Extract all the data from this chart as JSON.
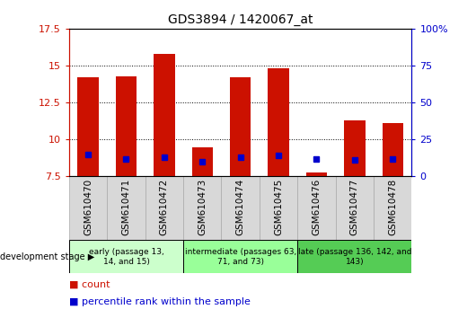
{
  "title": "GDS3894 / 1420067_at",
  "samples": [
    "GSM610470",
    "GSM610471",
    "GSM610472",
    "GSM610473",
    "GSM610474",
    "GSM610475",
    "GSM610476",
    "GSM610477",
    "GSM610478"
  ],
  "red_bar_values": [
    14.2,
    14.3,
    15.8,
    9.5,
    14.2,
    14.8,
    7.8,
    11.3,
    11.1
  ],
  "blue_dot_values": [
    9.0,
    8.7,
    8.8,
    8.5,
    8.8,
    8.9,
    8.7,
    8.6,
    8.7
  ],
  "ymin": 7.5,
  "ymax": 17.5,
  "y2min": 0,
  "y2max": 100,
  "yticks": [
    7.5,
    10.0,
    12.5,
    15.0,
    17.5
  ],
  "y2ticks": [
    0,
    25,
    50,
    75,
    100
  ],
  "groups": [
    {
      "label": "early (passage 13,\n14, and 15)",
      "start": 0,
      "end": 3,
      "color": "#ccffcc"
    },
    {
      "label": "intermediate (passages 63,\n71, and 73)",
      "start": 3,
      "end": 6,
      "color": "#99ff99"
    },
    {
      "label": "late (passage 136, 142, and\n143)",
      "start": 6,
      "end": 9,
      "color": "#55cc55"
    }
  ],
  "bar_color": "#cc1100",
  "dot_color": "#0000cc",
  "left_axis_color": "#cc1100",
  "right_axis_color": "#0000cc",
  "legend_count_label": "count",
  "legend_pct_label": "percentile rank within the sample",
  "dev_stage_label": "development stage"
}
